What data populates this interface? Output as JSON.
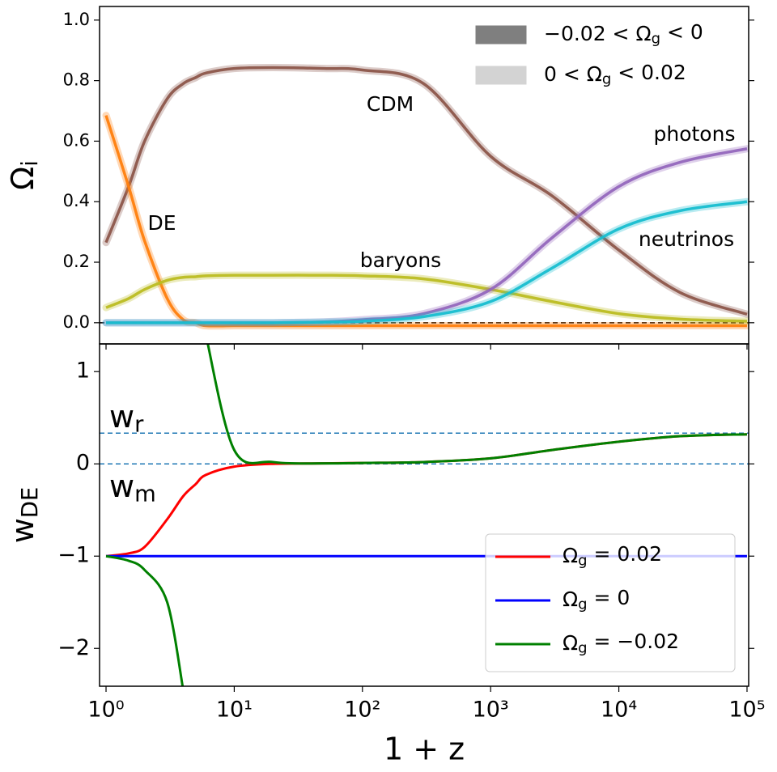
{
  "chart_data": [
    {
      "type": "line",
      "ylabel": "Ωi",
      "log_x": true,
      "x": [
        1,
        1.5,
        2,
        3,
        4,
        5,
        6,
        10,
        20,
        50,
        100,
        300,
        1000,
        3000,
        10000,
        30000,
        100000
      ],
      "xlim": [
        0.89,
        103000
      ],
      "ylim": [
        -0.07,
        1.045
      ],
      "yticks": [
        {
          "value": 0,
          "label": "0.0"
        },
        0.2,
        0.4,
        0.6,
        0.8,
        {
          "value": 1,
          "label": "1.0"
        }
      ],
      "hlines": [
        0
      ],
      "series": [
        {
          "name": "CDM",
          "color": "#8c564b",
          "values": [
            0.265,
            0.45,
            0.6,
            0.74,
            0.79,
            0.81,
            0.825,
            0.84,
            0.843,
            0.84,
            0.835,
            0.79,
            0.55,
            0.42,
            0.24,
            0.1,
            0.028
          ]
        },
        {
          "name": "DE",
          "color": "#ff7f0e",
          "values": [
            0.685,
            0.45,
            0.27,
            0.08,
            0.01,
            0,
            -0.01,
            -0.01,
            -0.01,
            -0.01,
            -0.01,
            -0.01,
            -0.01,
            -0.01,
            -0.01,
            -0.01,
            -0.01
          ]
        },
        {
          "name": "baryons",
          "color": "#bcbd22",
          "values": [
            0.05,
            0.08,
            0.11,
            0.14,
            0.15,
            0.152,
            0.155,
            0.157,
            0.157,
            0.157,
            0.155,
            0.145,
            0.11,
            0.07,
            0.03,
            0.012,
            0.005
          ]
        },
        {
          "name": "photons",
          "color": "#9467bd",
          "values": [
            0,
            0,
            0,
            0,
            0,
            0,
            0,
            0,
            0,
            0.003,
            0.01,
            0.03,
            0.11,
            0.28,
            0.45,
            0.53,
            0.575
          ]
        },
        {
          "name": "neutrinos",
          "color": "#17becf",
          "values": [
            0,
            0,
            0,
            0,
            0,
            0,
            0,
            0,
            0,
            0.002,
            0.005,
            0.02,
            0.07,
            0.18,
            0.31,
            0.37,
            0.4
          ]
        }
      ],
      "legend": [
        {
          "label": "−0.02 < Ωg < 0",
          "color": "#7f7f7f"
        },
        {
          "label": "0 < Ωg < 0.02",
          "color": "#d3d3d3"
        }
      ]
    },
    {
      "type": "line",
      "xlabel": "1 + z",
      "ylabel": "wDE",
      "log_x": true,
      "x": [
        1,
        1.5,
        2,
        3,
        4,
        5,
        6,
        10,
        20,
        50,
        100,
        300,
        1000,
        3000,
        10000,
        30000,
        100000
      ],
      "xlim": [
        0.89,
        103000
      ],
      "xticks": [
        {
          "value": 1,
          "label": "10⁰"
        },
        {
          "value": 10,
          "label": "10¹"
        },
        {
          "value": 100,
          "label": "10²"
        },
        {
          "value": 1000,
          "label": "10³"
        },
        {
          "value": 10000,
          "label": "10⁴"
        },
        {
          "value": 100000,
          "label": "10⁵"
        }
      ],
      "ylim": [
        -2.41,
        1.3
      ],
      "yticks": [
        {
          "value": -2,
          "label": "−2"
        },
        {
          "value": -1,
          "label": "−1"
        },
        0,
        1
      ],
      "hlines": [
        {
          "value": 0.3333,
          "label": "wr"
        },
        {
          "value": 0,
          "label": "wm"
        }
      ],
      "legend_loc": "lower right",
      "series": [
        {
          "name": "Ωg = 0.02",
          "color": "#ff0000",
          "values": [
            -1,
            -0.97,
            -0.9,
            -0.6,
            -0.35,
            -0.22,
            -0.12,
            -0.03,
            0,
            0.005,
            0.01,
            0.02,
            0.06,
            0.15,
            0.24,
            0.3,
            0.32
          ]
        },
        {
          "name": "Ωg = 0",
          "color": "#0000ff",
          "values": [
            -1,
            -1,
            -1,
            -1,
            -1,
            -1,
            -1,
            -1,
            -1,
            -1,
            -1,
            -1,
            -1,
            -1,
            -1,
            -1,
            -1
          ]
        },
        {
          "name": "Ωg = −0.02",
          "color": "#008000",
          "values": [
            -1,
            -1.05,
            -1.15,
            -1.5,
            -2.45,
            null,
            1.4,
            0.15,
            0.02,
            0.005,
            0.01,
            0.02,
            0.06,
            0.15,
            0.24,
            0.3,
            0.32
          ]
        }
      ]
    }
  ]
}
